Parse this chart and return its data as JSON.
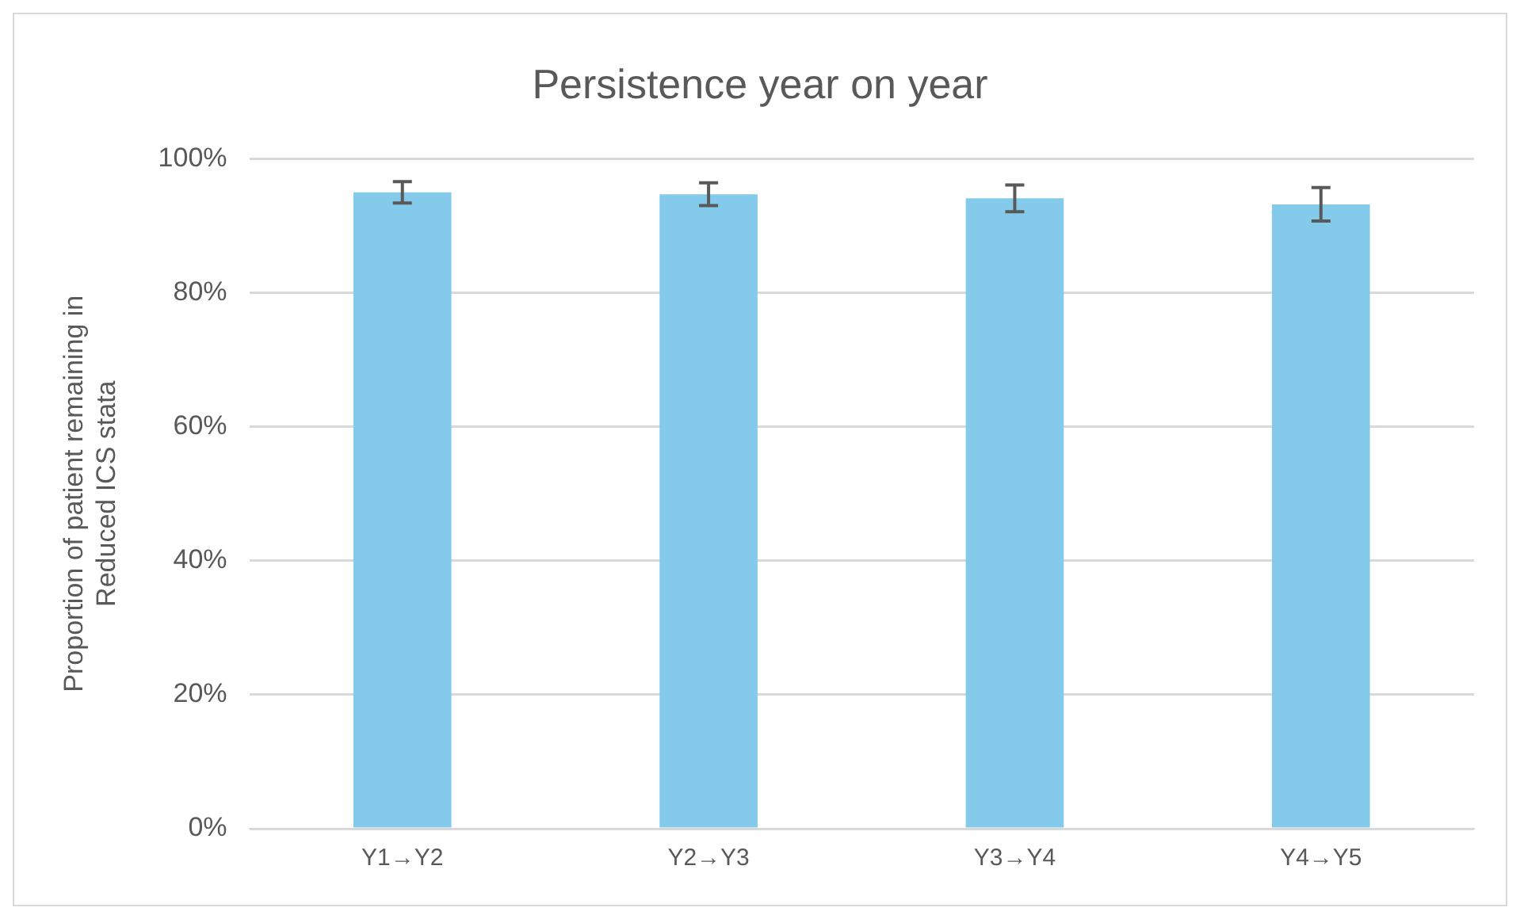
{
  "chart_data": {
    "type": "bar",
    "title": "Persistence year on year",
    "ylabel": "Proportion of patient remaining in\nReduced ICS stata",
    "categories": [
      "Y1→Y2",
      "Y2→Y3",
      "Y3→Y4",
      "Y4→Y5"
    ],
    "values": [
      95.0,
      94.7,
      94.1,
      93.2
    ],
    "errors": [
      1.6,
      1.7,
      2.0,
      2.5
    ],
    "color": "#84cbeb",
    "ylim": [
      0,
      100
    ],
    "yticks": [
      {
        "value": 0,
        "label": "0%"
      },
      {
        "value": 20,
        "label": "20%"
      },
      {
        "value": 40,
        "label": "40%"
      },
      {
        "value": 60,
        "label": "60%"
      },
      {
        "value": 80,
        "label": "80%"
      },
      {
        "value": 100,
        "label": "100%"
      }
    ],
    "grid": "y"
  }
}
